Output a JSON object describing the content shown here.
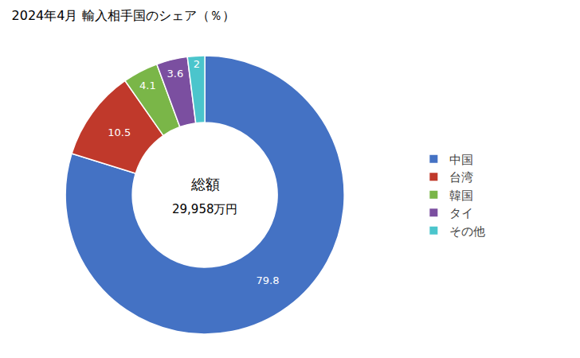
{
  "chart_data": {
    "type": "donut",
    "title": "2024年4月 輸入相手国のシェア（％）",
    "categories": [
      "中国",
      "台湾",
      "韓国",
      "タイ",
      "その他"
    ],
    "values": [
      79.8,
      10.5,
      4.1,
      3.6,
      2.0
    ],
    "colors": [
      "#4472C4",
      "#C0392B",
      "#7AB648",
      "#7B4FA0",
      "#4BC5CC"
    ],
    "annotations": [
      "総額",
      "29,958万円"
    ],
    "data_labels": true,
    "legend": "right"
  }
}
